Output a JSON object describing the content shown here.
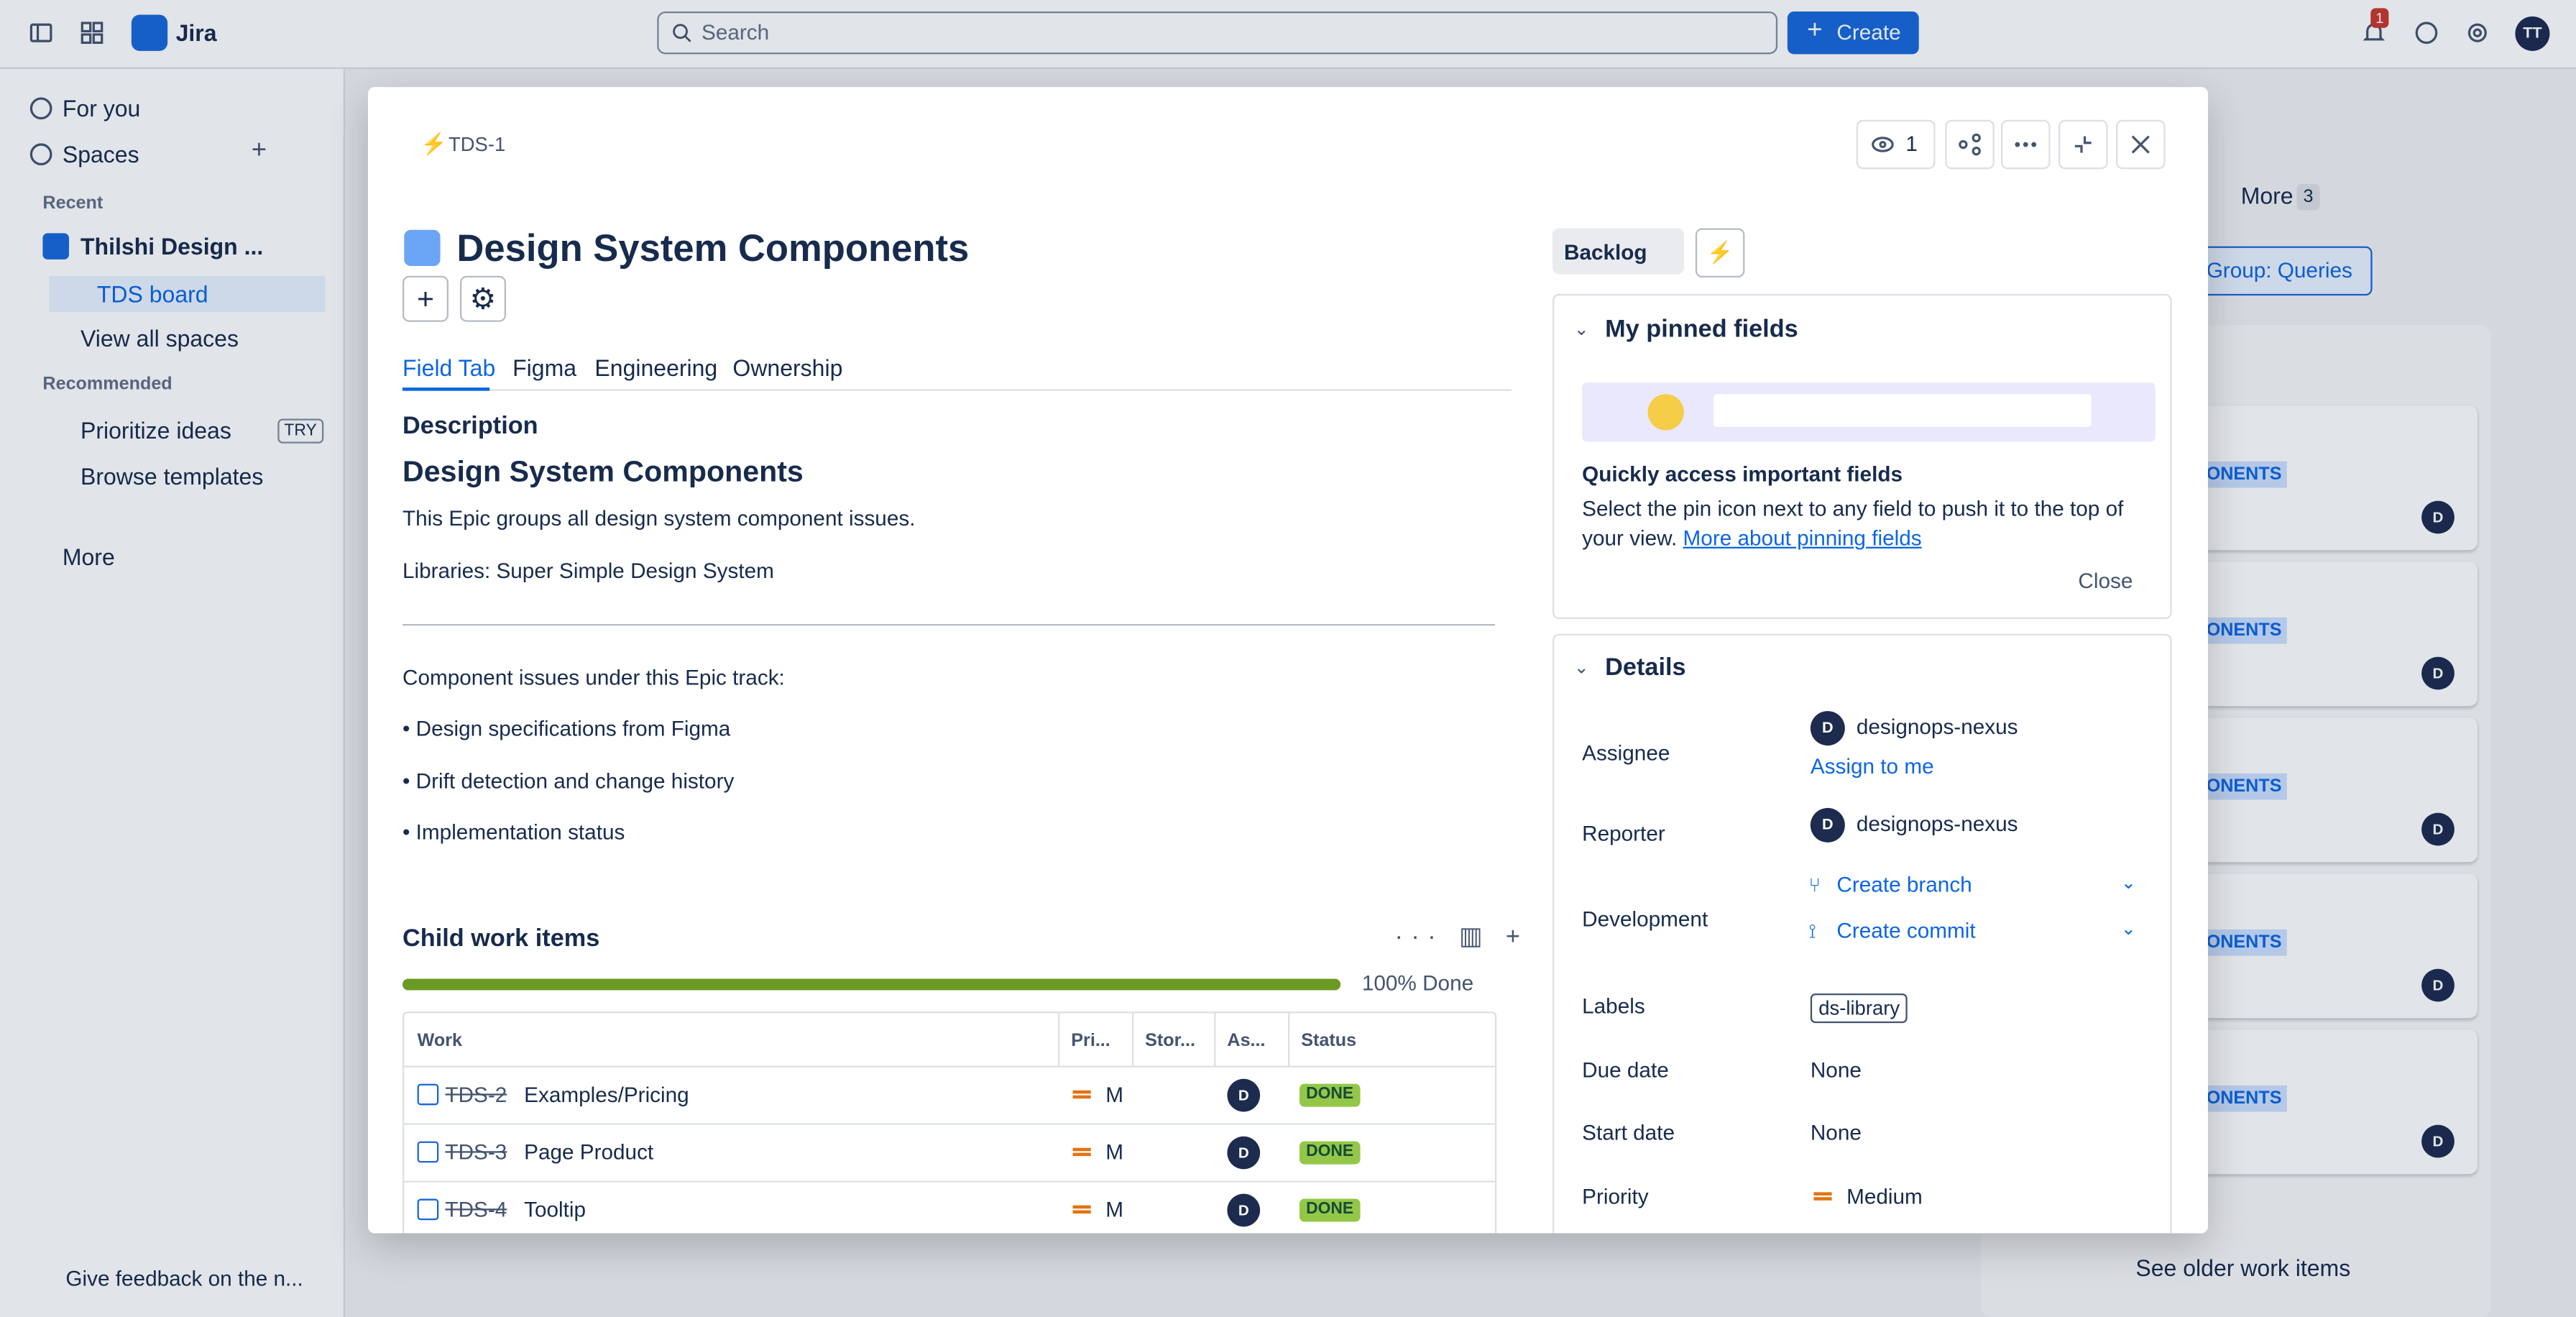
{
  "topbar": {
    "app": "Jira",
    "search": "Search",
    "create": "Create",
    "notifications": "1",
    "avatar": "TT"
  },
  "sidebar": {
    "items": [
      "For you",
      "Spaces"
    ],
    "recent_heading": "Recent",
    "space": "Thilshi Design ...",
    "board": "TDS board",
    "view_all": "View all spaces",
    "recommended_heading": "Recommended",
    "recommended": [
      {
        "label": "Prioritize ideas",
        "badge": "TRY"
      },
      {
        "label": "Browse templates"
      }
    ],
    "more": "More",
    "feedback": "Give feedback on the n..."
  },
  "board": {
    "tab": "More",
    "tab_count": "3",
    "group": "Group: Queries",
    "cards": [
      {
        "label": "ONENTS",
        "avatar": "D"
      },
      {
        "label": "ONENTS",
        "avatar": "D"
      },
      {
        "label": "ONENTS",
        "avatar": "D"
      },
      {
        "label": "ONENTS",
        "avatar": "D"
      },
      {
        "label": "ONENTS",
        "avatar": "D"
      }
    ],
    "footer": "See older work items"
  },
  "modal": {
    "key": "TDS-1",
    "watchers": "1",
    "title": "Design System Components",
    "tabs": [
      "Field Tab",
      "Figma",
      "Engineering",
      "Ownership"
    ],
    "description": {
      "heading": "Description",
      "title": "Design System Components",
      "paragraphs": [
        "This Epic groups all design system component issues.",
        "Libraries: Super Simple Design System"
      ],
      "track_intro": "Component issues under this Epic track:",
      "bullets": [
        "• Design specifications from Figma",
        "• Drift detection and change history",
        "• Implementation status"
      ]
    },
    "children": {
      "title": "Child work items",
      "progress": "100% Done",
      "columns": [
        "Work",
        "Pri...",
        "Stor...",
        "As...",
        "Status"
      ],
      "rows": [
        {
          "key": "TDS-2",
          "summary": "Examples/Pricing",
          "priority": "M",
          "assignee": "D",
          "status": "DONE"
        },
        {
          "key": "TDS-3",
          "summary": "Page Product",
          "priority": "M",
          "assignee": "D",
          "status": "DONE"
        },
        {
          "key": "TDS-4",
          "summary": "Tooltip",
          "priority": "M",
          "assignee": "D",
          "status": "DONE"
        }
      ]
    },
    "status": "Backlog",
    "pinned": {
      "title": "My pinned fields",
      "heading": "Quickly access important fields",
      "text": "Select the pin icon next to any field to push it to the top of your view.",
      "link": "More about pinning fields",
      "close": "Close"
    },
    "details": {
      "title": "Details",
      "fields": [
        {
          "label": "Assignee",
          "value": "designops-nexus",
          "avatar": "D",
          "action": "Assign to me"
        },
        {
          "label": "Reporter",
          "value": "designops-nexus",
          "avatar": "D"
        },
        {
          "label": "Development",
          "links": [
            "Create branch",
            "Create commit"
          ]
        },
        {
          "label": "Labels",
          "tag": "ds-library"
        },
        {
          "label": "Due date",
          "value": "None"
        },
        {
          "label": "Start date",
          "value": "None"
        },
        {
          "label": "Priority",
          "value": "Medium"
        }
      ]
    }
  }
}
